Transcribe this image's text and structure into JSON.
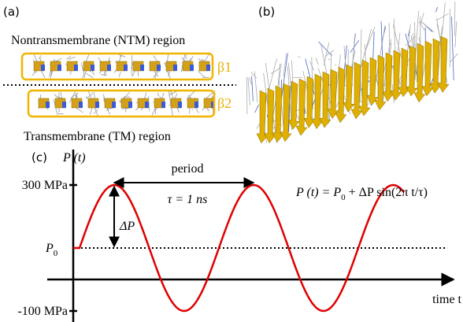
{
  "panel_a": {
    "label": "(a)",
    "top_region": "Nontransmembrane (NTM) region",
    "strand_1": "β1",
    "strand_2": "β2",
    "bottom_region": "Transmembrane (TM) region"
  },
  "panel_b": {
    "label": "(b)"
  },
  "panel_c": {
    "label": "(c)",
    "y_axis": "P (t)",
    "y_top": "300 MPa",
    "y_bottom": "-100 MPa",
    "p0": {
      "symbol": "P",
      "subscript": "0"
    },
    "period": "period",
    "tau": "τ = 1 ns",
    "delta": "ΔP",
    "x_axis": "time t",
    "equation": {
      "left": "P (t) = P",
      "subscript": "0",
      "right": " + ΔP sin(2π t/τ)"
    }
  }
}
